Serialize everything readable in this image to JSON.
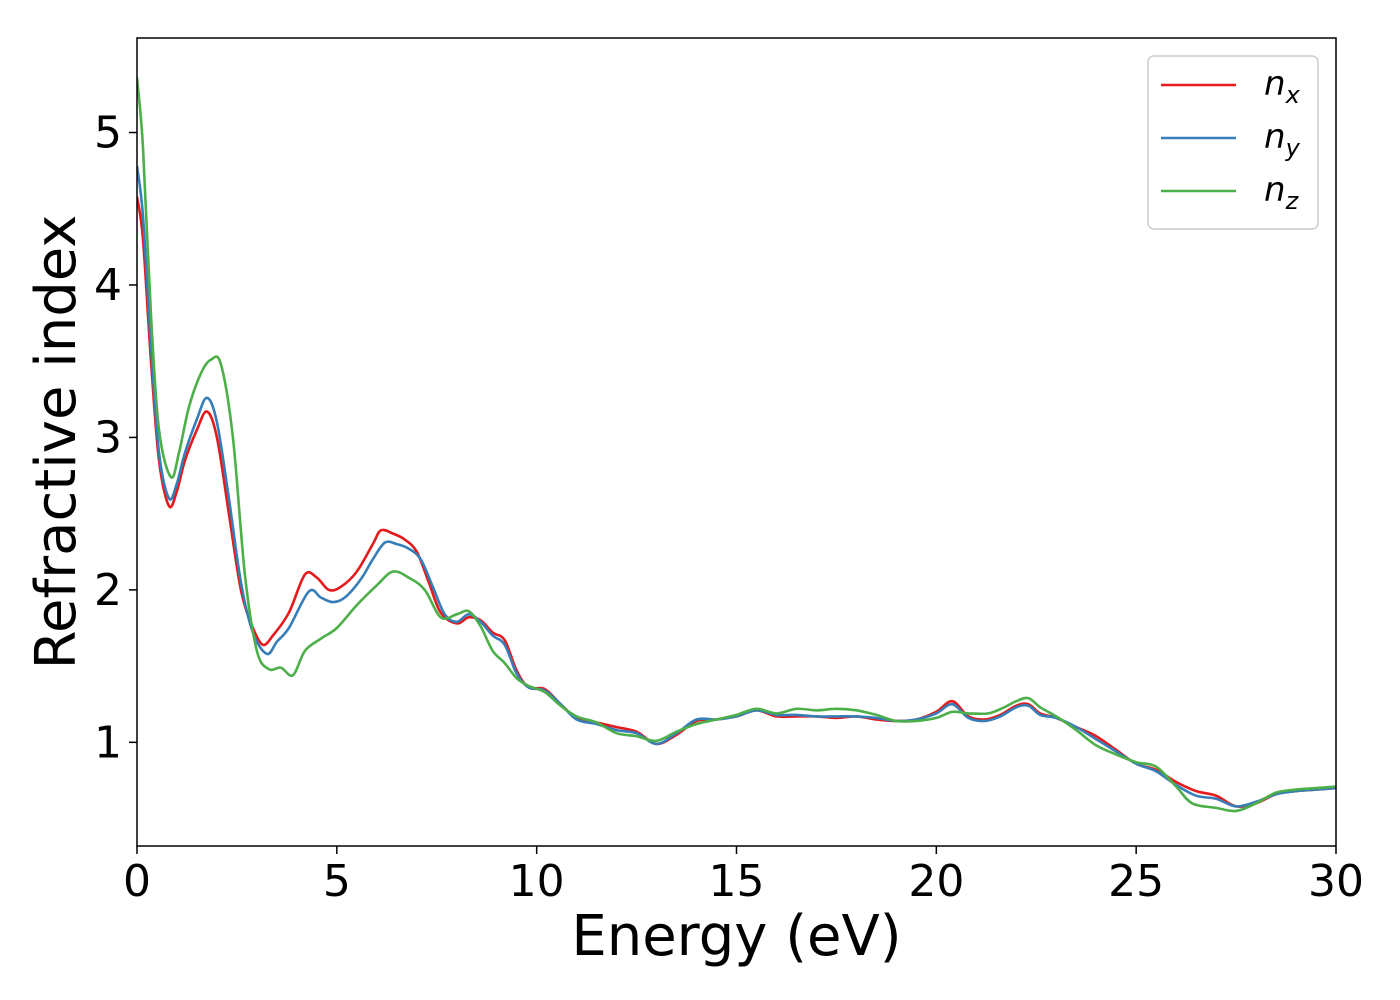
{
  "chart_data": {
    "type": "line",
    "title": "",
    "xlabel": "Energy (eV)",
    "ylabel": "Refractive index",
    "xlim": [
      0,
      30
    ],
    "ylim": [
      0.32,
      5.62
    ],
    "xticks": [
      0,
      5,
      10,
      15,
      20,
      25,
      30
    ],
    "yticks": [
      1,
      2,
      3,
      4,
      5
    ],
    "grid": false,
    "legend_position": "top-right",
    "series": [
      {
        "name": "n_x",
        "label_base": "n",
        "label_sub": "x",
        "color": "#e41a1c",
        "points": [
          [
            0.0,
            4.58
          ],
          [
            0.15,
            4.3
          ],
          [
            0.35,
            3.5
          ],
          [
            0.55,
            2.85
          ],
          [
            0.8,
            2.55
          ],
          [
            1.0,
            2.65
          ],
          [
            1.2,
            2.85
          ],
          [
            1.5,
            3.05
          ],
          [
            1.75,
            3.17
          ],
          [
            2.0,
            3.0
          ],
          [
            2.3,
            2.5
          ],
          [
            2.6,
            2.0
          ],
          [
            2.9,
            1.75
          ],
          [
            3.15,
            1.64
          ],
          [
            3.4,
            1.7
          ],
          [
            3.8,
            1.85
          ],
          [
            4.2,
            2.1
          ],
          [
            4.5,
            2.08
          ],
          [
            4.8,
            2.0
          ],
          [
            5.1,
            2.02
          ],
          [
            5.5,
            2.12
          ],
          [
            5.9,
            2.3
          ],
          [
            6.1,
            2.39
          ],
          [
            6.4,
            2.37
          ],
          [
            6.7,
            2.33
          ],
          [
            7.0,
            2.25
          ],
          [
            7.3,
            2.05
          ],
          [
            7.6,
            1.85
          ],
          [
            8.0,
            1.78
          ],
          [
            8.3,
            1.82
          ],
          [
            8.6,
            1.8
          ],
          [
            8.9,
            1.72
          ],
          [
            9.2,
            1.67
          ],
          [
            9.5,
            1.47
          ],
          [
            9.8,
            1.36
          ],
          [
            10.2,
            1.35
          ],
          [
            10.6,
            1.25
          ],
          [
            11.0,
            1.16
          ],
          [
            11.5,
            1.13
          ],
          [
            12.0,
            1.1
          ],
          [
            12.5,
            1.07
          ],
          [
            13.0,
            0.99
          ],
          [
            13.5,
            1.05
          ],
          [
            14.0,
            1.14
          ],
          [
            14.5,
            1.15
          ],
          [
            15.0,
            1.17
          ],
          [
            15.5,
            1.21
          ],
          [
            16.0,
            1.17
          ],
          [
            16.5,
            1.17
          ],
          [
            17.0,
            1.17
          ],
          [
            17.5,
            1.16
          ],
          [
            18.0,
            1.17
          ],
          [
            18.5,
            1.15
          ],
          [
            19.0,
            1.14
          ],
          [
            19.5,
            1.15
          ],
          [
            20.0,
            1.2
          ],
          [
            20.4,
            1.27
          ],
          [
            20.8,
            1.17
          ],
          [
            21.2,
            1.15
          ],
          [
            21.6,
            1.18
          ],
          [
            22.0,
            1.24
          ],
          [
            22.3,
            1.25
          ],
          [
            22.6,
            1.19
          ],
          [
            23.0,
            1.16
          ],
          [
            23.5,
            1.1
          ],
          [
            24.0,
            1.04
          ],
          [
            24.5,
            0.95
          ],
          [
            25.0,
            0.86
          ],
          [
            25.5,
            0.82
          ],
          [
            26.0,
            0.74
          ],
          [
            26.5,
            0.68
          ],
          [
            27.0,
            0.65
          ],
          [
            27.5,
            0.58
          ],
          [
            28.0,
            0.6
          ],
          [
            28.5,
            0.66
          ],
          [
            29.0,
            0.68
          ],
          [
            29.5,
            0.69
          ],
          [
            30.0,
            0.7
          ]
        ]
      },
      {
        "name": "n_y",
        "label_base": "n",
        "label_sub": "y",
        "color": "#377eb8",
        "points": [
          [
            0.0,
            4.78
          ],
          [
            0.15,
            4.45
          ],
          [
            0.35,
            3.6
          ],
          [
            0.55,
            2.9
          ],
          [
            0.8,
            2.6
          ],
          [
            1.0,
            2.7
          ],
          [
            1.2,
            2.9
          ],
          [
            1.5,
            3.12
          ],
          [
            1.75,
            3.26
          ],
          [
            2.0,
            3.1
          ],
          [
            2.3,
            2.6
          ],
          [
            2.6,
            2.05
          ],
          [
            2.9,
            1.72
          ],
          [
            3.25,
            1.58
          ],
          [
            3.5,
            1.66
          ],
          [
            3.8,
            1.75
          ],
          [
            4.3,
            1.99
          ],
          [
            4.6,
            1.95
          ],
          [
            4.9,
            1.92
          ],
          [
            5.2,
            1.95
          ],
          [
            5.6,
            2.07
          ],
          [
            5.9,
            2.2
          ],
          [
            6.2,
            2.31
          ],
          [
            6.5,
            2.3
          ],
          [
            6.8,
            2.27
          ],
          [
            7.1,
            2.2
          ],
          [
            7.4,
            2.02
          ],
          [
            7.7,
            1.84
          ],
          [
            8.0,
            1.79
          ],
          [
            8.3,
            1.84
          ],
          [
            8.6,
            1.79
          ],
          [
            8.9,
            1.7
          ],
          [
            9.2,
            1.64
          ],
          [
            9.5,
            1.45
          ],
          [
            9.8,
            1.36
          ],
          [
            10.2,
            1.34
          ],
          [
            10.6,
            1.25
          ],
          [
            11.0,
            1.15
          ],
          [
            11.5,
            1.12
          ],
          [
            12.0,
            1.08
          ],
          [
            12.5,
            1.06
          ],
          [
            13.0,
            0.99
          ],
          [
            13.5,
            1.06
          ],
          [
            14.0,
            1.15
          ],
          [
            14.5,
            1.15
          ],
          [
            15.0,
            1.17
          ],
          [
            15.5,
            1.21
          ],
          [
            16.0,
            1.18
          ],
          [
            16.5,
            1.18
          ],
          [
            17.0,
            1.17
          ],
          [
            17.5,
            1.17
          ],
          [
            18.0,
            1.17
          ],
          [
            18.5,
            1.16
          ],
          [
            19.0,
            1.14
          ],
          [
            19.5,
            1.15
          ],
          [
            20.0,
            1.19
          ],
          [
            20.4,
            1.25
          ],
          [
            20.8,
            1.16
          ],
          [
            21.2,
            1.14
          ],
          [
            21.6,
            1.17
          ],
          [
            22.0,
            1.23
          ],
          [
            22.3,
            1.24
          ],
          [
            22.6,
            1.18
          ],
          [
            23.0,
            1.16
          ],
          [
            23.5,
            1.1
          ],
          [
            24.0,
            1.02
          ],
          [
            24.5,
            0.94
          ],
          [
            25.0,
            0.86
          ],
          [
            25.5,
            0.81
          ],
          [
            26.0,
            0.72
          ],
          [
            26.5,
            0.65
          ],
          [
            27.0,
            0.63
          ],
          [
            27.5,
            0.58
          ],
          [
            28.0,
            0.61
          ],
          [
            28.5,
            0.66
          ],
          [
            29.0,
            0.68
          ],
          [
            29.5,
            0.69
          ],
          [
            30.0,
            0.7
          ]
        ]
      },
      {
        "name": "n_z",
        "label_base": "n",
        "label_sub": "z",
        "color": "#4daf4a",
        "points": [
          [
            0.0,
            5.36
          ],
          [
            0.15,
            4.9
          ],
          [
            0.35,
            3.8
          ],
          [
            0.55,
            3.05
          ],
          [
            0.85,
            2.74
          ],
          [
            1.05,
            2.9
          ],
          [
            1.3,
            3.2
          ],
          [
            1.6,
            3.42
          ],
          [
            1.85,
            3.51
          ],
          [
            2.1,
            3.48
          ],
          [
            2.4,
            3.0
          ],
          [
            2.7,
            2.1
          ],
          [
            3.0,
            1.6
          ],
          [
            3.3,
            1.48
          ],
          [
            3.6,
            1.49
          ],
          [
            3.9,
            1.44
          ],
          [
            4.2,
            1.6
          ],
          [
            4.6,
            1.68
          ],
          [
            5.0,
            1.75
          ],
          [
            5.5,
            1.9
          ],
          [
            6.0,
            2.03
          ],
          [
            6.4,
            2.12
          ],
          [
            6.8,
            2.08
          ],
          [
            7.2,
            2.0
          ],
          [
            7.6,
            1.82
          ],
          [
            8.0,
            1.84
          ],
          [
            8.3,
            1.86
          ],
          [
            8.6,
            1.76
          ],
          [
            8.9,
            1.6
          ],
          [
            9.2,
            1.52
          ],
          [
            9.5,
            1.42
          ],
          [
            9.8,
            1.37
          ],
          [
            10.2,
            1.33
          ],
          [
            10.6,
            1.24
          ],
          [
            11.0,
            1.17
          ],
          [
            11.5,
            1.13
          ],
          [
            12.0,
            1.06
          ],
          [
            12.5,
            1.04
          ],
          [
            13.0,
            1.01
          ],
          [
            13.5,
            1.07
          ],
          [
            14.0,
            1.12
          ],
          [
            14.5,
            1.15
          ],
          [
            15.0,
            1.18
          ],
          [
            15.5,
            1.22
          ],
          [
            16.0,
            1.19
          ],
          [
            16.5,
            1.22
          ],
          [
            17.0,
            1.21
          ],
          [
            17.5,
            1.22
          ],
          [
            18.0,
            1.21
          ],
          [
            18.5,
            1.18
          ],
          [
            19.0,
            1.14
          ],
          [
            19.5,
            1.14
          ],
          [
            20.0,
            1.16
          ],
          [
            20.4,
            1.2
          ],
          [
            20.8,
            1.19
          ],
          [
            21.3,
            1.19
          ],
          [
            21.7,
            1.23
          ],
          [
            22.0,
            1.27
          ],
          [
            22.3,
            1.29
          ],
          [
            22.6,
            1.23
          ],
          [
            23.0,
            1.17
          ],
          [
            23.5,
            1.08
          ],
          [
            24.0,
            0.98
          ],
          [
            24.5,
            0.92
          ],
          [
            25.0,
            0.87
          ],
          [
            25.5,
            0.84
          ],
          [
            26.0,
            0.71
          ],
          [
            26.4,
            0.6
          ],
          [
            27.0,
            0.57
          ],
          [
            27.5,
            0.55
          ],
          [
            28.0,
            0.6
          ],
          [
            28.5,
            0.67
          ],
          [
            29.0,
            0.69
          ],
          [
            29.5,
            0.7
          ],
          [
            30.0,
            0.71
          ]
        ]
      }
    ]
  }
}
